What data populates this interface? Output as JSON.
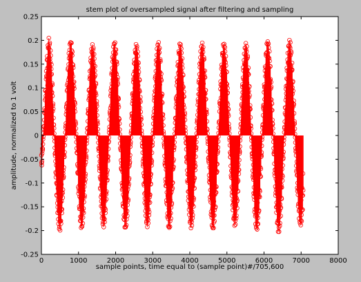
{
  "chart_data": {
    "type": "scatter",
    "style": "stem",
    "marker": "circle",
    "title": "stem plot of oversampled signal after filtering and sampling",
    "xlabel": "sample points, time equal to (sample point)#/705,600",
    "ylabel": "amplitude, normalized to 1 volt",
    "xlim": [
      0,
      8000
    ],
    "ylim": [
      -0.25,
      0.25
    ],
    "xticks": [
      0,
      1000,
      2000,
      3000,
      4000,
      5000,
      6000,
      7000,
      8000
    ],
    "yticks": [
      -0.25,
      -0.2,
      -0.15,
      -0.1,
      -0.05,
      0,
      0.05,
      0.1,
      0.15,
      0.2,
      0.25
    ],
    "grid": false,
    "series": [
      {
        "color": "#ff0000",
        "n_points": 7056,
        "x_range": [
          0,
          7055
        ],
        "envelope_period": 590,
        "envelope_peaks": [
          {
            "x": 200,
            "y": 0.205
          },
          {
            "x": 565,
            "y": -0.2
          },
          {
            "x": 785,
            "y": 0.2
          },
          {
            "x": 1225,
            "y": -0.195
          },
          {
            "x": 1450,
            "y": 0.19
          },
          {
            "x": 1840,
            "y": -0.195
          },
          {
            "x": 2045,
            "y": 0.2
          },
          {
            "x": 2455,
            "y": -0.195
          },
          {
            "x": 2670,
            "y": 0.19
          },
          {
            "x": 3060,
            "y": -0.195
          },
          {
            "x": 3260,
            "y": 0.2
          },
          {
            "x": 3690,
            "y": -0.195
          },
          {
            "x": 3910,
            "y": 0.195
          },
          {
            "x": 4310,
            "y": -0.195
          },
          {
            "x": 4515,
            "y": 0.2
          },
          {
            "x": 4930,
            "y": -0.195
          },
          {
            "x": 5160,
            "y": 0.19
          },
          {
            "x": 5545,
            "y": -0.195
          },
          {
            "x": 5745,
            "y": 0.2
          },
          {
            "x": 6165,
            "y": -0.2
          },
          {
            "x": 6395,
            "y": 0.205
          },
          {
            "x": 6775,
            "y": -0.2
          },
          {
            "x": 6980,
            "y": 0.19
          }
        ]
      }
    ]
  }
}
